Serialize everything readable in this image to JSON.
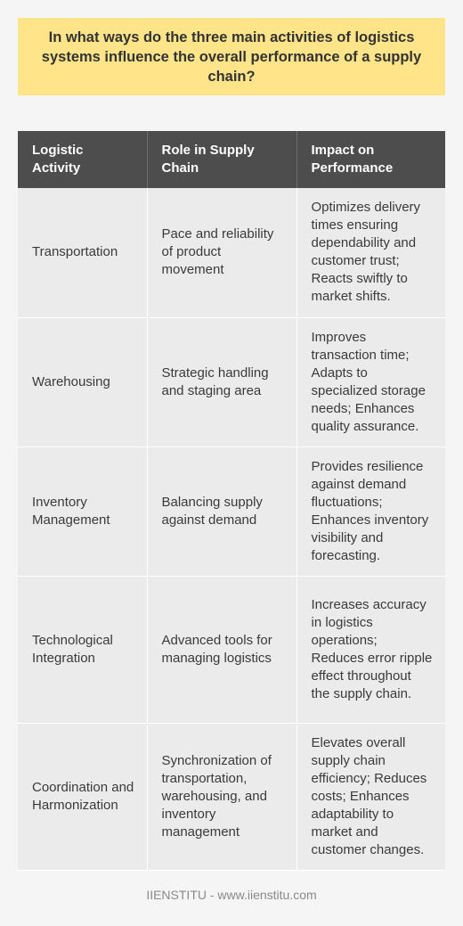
{
  "question": "In what ways do the three main activities of logistics systems influence the overall performance of a supply chain?",
  "table": {
    "headers": [
      "Logistic Activity",
      "Role in Supply Chain",
      "Impact on Performance"
    ],
    "rows": [
      {
        "activity": "Transportation",
        "role": "Pace and reliability of product movement",
        "impact": "Optimizes delivery times ensuring dependability and customer trust; Reacts swiftly to market shifts."
      },
      {
        "activity": "Warehousing",
        "role": "Strategic handling and staging area",
        "impact": "Improves transaction time; Adapts to specialized storage needs; Enhances quality assurance."
      },
      {
        "activity": "Inventory Management",
        "role": "Balancing supply against demand",
        "impact": "Provides resilience against demand fluctuations; Enhances inventory visibility and forecasting."
      },
      {
        "activity": "Technological Integration",
        "role": "Advanced tools for managing logistics",
        "impact": "Increases accuracy in logistics operations; Reduces error ripple effect throughout the supply chain."
      },
      {
        "activity": "Coordination and Harmonization",
        "role": "Synchronization of transportation, warehousing, and inventory management",
        "impact": "Elevates overall supply chain efficiency; Reduces costs; Enhances adaptability to market and customer changes."
      }
    ]
  },
  "footer": "IIENSTITU - www.iienstitu.com",
  "colors": {
    "question_bg": "#ffe48a",
    "header_bg": "#4d4d4d",
    "cell_bg": "#ebebeb",
    "page_bg": "#f5f5f5"
  }
}
